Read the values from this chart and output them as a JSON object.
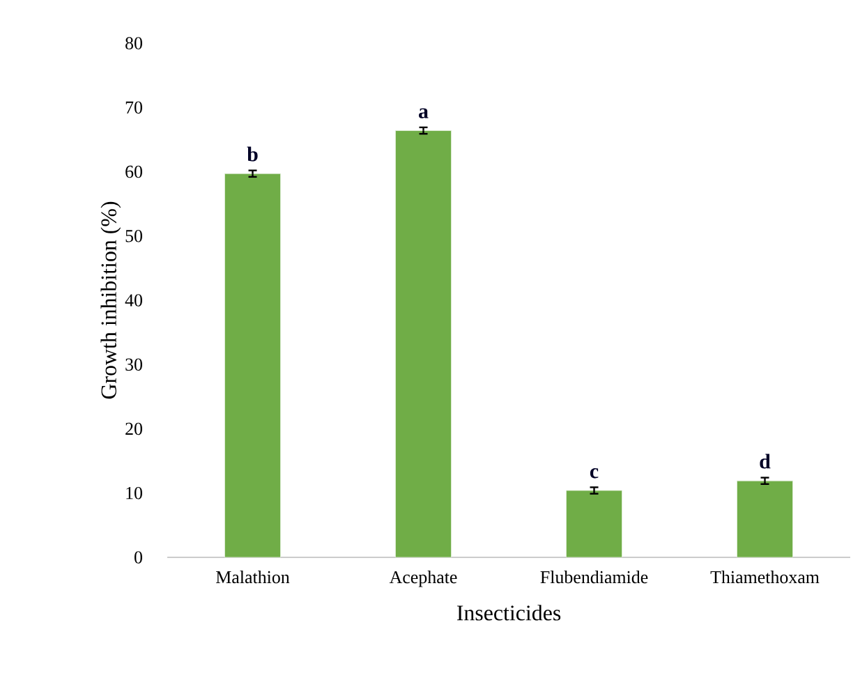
{
  "chart_data": {
    "type": "bar",
    "xlabel": "Insecticides",
    "ylabel": "Growth inhibition (%)",
    "categories": [
      "Malathion",
      "Acephate",
      "Flubendiamide",
      "Thiamethoxam"
    ],
    "values": [
      59.7,
      66.4,
      10.4,
      11.9
    ],
    "errors": [
      0.5,
      0.5,
      0.5,
      0.5
    ],
    "color": "#70ad47",
    "ylim": [
      0,
      80
    ],
    "yticks": [
      0,
      10,
      20,
      30,
      40,
      50,
      60,
      70,
      80
    ],
    "grid": false,
    "annotations": [
      "b",
      "a",
      "c",
      "d"
    ]
  }
}
